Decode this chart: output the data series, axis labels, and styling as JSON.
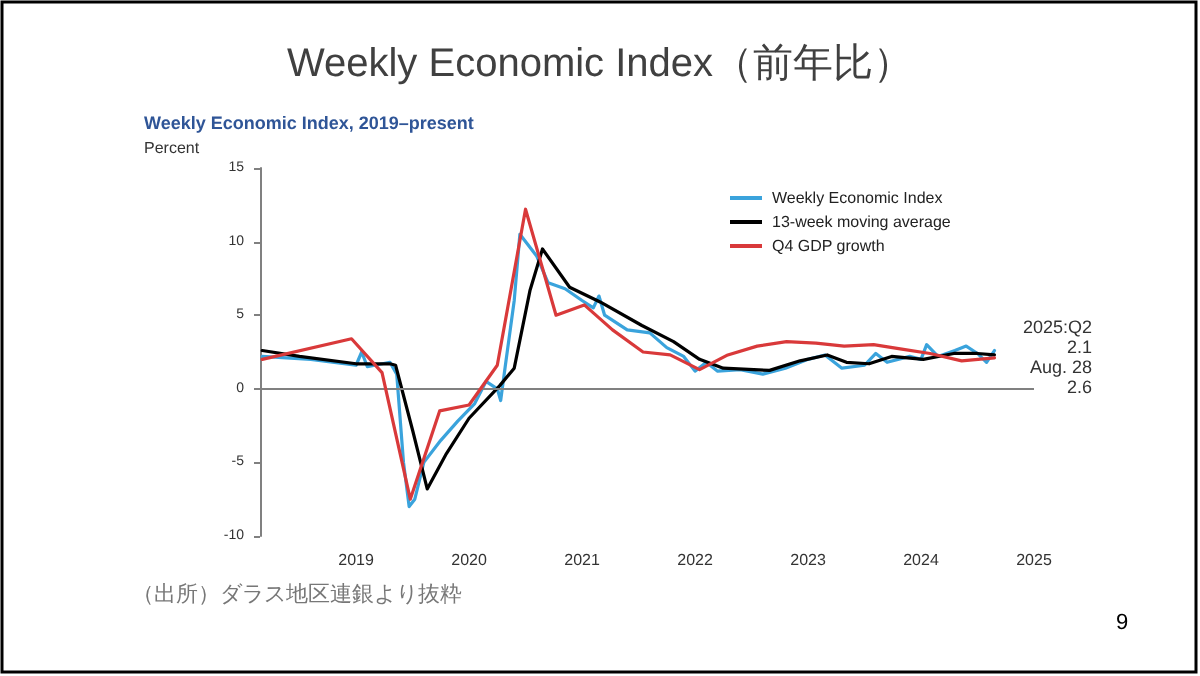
{
  "chart_data": {
    "type": "line",
    "title": "Weekly Economic Index（前年比）",
    "subtitle": "Weekly Economic Index, 2019–present",
    "ylabel": "Percent",
    "xlim": [
      2018.15,
      2025
    ],
    "xticks": [
      2019,
      2020,
      2021,
      2022,
      2023,
      2024,
      2025
    ],
    "ylim": [
      -10,
      15
    ],
    "yticks": [
      -10,
      -5,
      0,
      5,
      10,
      15
    ],
    "grid": false,
    "legend": "top right",
    "marker": "none",
    "line_style": "solid",
    "ref_lines": [
      {
        "axis": "y",
        "value": 0,
        "label": null,
        "color": "#808080"
      }
    ],
    "series": [
      {
        "name": "Weekly Economic Index",
        "color": "#3aa3dc",
        "x": [
          2018.17,
          2018.6,
          2019.0,
          2019.05,
          2019.1,
          2019.3,
          2019.36,
          2019.42,
          2019.47,
          2019.52,
          2019.6,
          2019.75,
          2019.9,
          2020.05,
          2020.15,
          2020.25,
          2020.28,
          2020.32,
          2020.4,
          2020.45,
          2020.52,
          2020.6,
          2020.7,
          2020.85,
          2021.0,
          2021.1,
          2021.15,
          2021.2,
          2021.4,
          2021.6,
          2021.75,
          2021.9,
          2022.0,
          2022.1,
          2022.2,
          2022.4,
          2022.6,
          2022.8,
          2023.0,
          2023.15,
          2023.3,
          2023.5,
          2023.6,
          2023.7,
          2023.9,
          2024.0,
          2024.05,
          2024.15,
          2024.3,
          2024.4,
          2024.5,
          2024.58,
          2024.65
        ],
        "values": [
          2.2,
          2.0,
          1.6,
          2.5,
          1.5,
          1.8,
          1.0,
          -5,
          -8.0,
          -7.5,
          -5,
          -3.5,
          -2.2,
          -1,
          0.5,
          0.0,
          -0.8,
          1.5,
          6,
          10.5,
          9.8,
          9,
          7.2,
          6.8,
          6.0,
          5.5,
          6.3,
          5.0,
          4.0,
          3.8,
          2.8,
          2.2,
          1.2,
          1.8,
          1.2,
          1.3,
          1.0,
          1.4,
          2.0,
          2.3,
          1.4,
          1.6,
          2.4,
          1.8,
          2.2,
          2.0,
          3.0,
          2.2,
          2.6,
          2.9,
          2.4,
          1.8,
          2.6
        ]
      },
      {
        "name": "13-week moving average",
        "color": "#000000",
        "x": [
          2018.17,
          2018.5,
          2019.0,
          2019.3,
          2019.35,
          2019.5,
          2019.63,
          2019.8,
          2020.0,
          2020.27,
          2020.4,
          2020.54,
          2020.65,
          2020.89,
          2021.16,
          2021.53,
          2021.81,
          2022.04,
          2022.25,
          2022.66,
          2022.93,
          2023.17,
          2023.34,
          2023.54,
          2023.74,
          2024.02,
          2024.29,
          2024.5,
          2024.65
        ],
        "values": [
          2.6,
          2.2,
          1.7,
          1.7,
          1.6,
          -2.8,
          -6.8,
          -4.4,
          -2.0,
          0.2,
          1.4,
          6.7,
          9.5,
          6.9,
          5.9,
          4.3,
          3.2,
          2.0,
          1.4,
          1.25,
          1.9,
          2.3,
          1.8,
          1.7,
          2.2,
          2.0,
          2.4,
          2.4,
          2.3
        ]
      },
      {
        "name": "Q4 GDP growth",
        "color": "#d9393a",
        "x": [
          2018.17,
          2018.96,
          2019.23,
          2019.48,
          2019.74,
          2020.0,
          2020.25,
          2020.5,
          2020.77,
          2021.02,
          2021.27,
          2021.54,
          2021.78,
          2022.04,
          2022.29,
          2022.55,
          2022.81,
          2023.07,
          2023.32,
          2023.58,
          2023.83,
          2024.08,
          2024.36,
          2024.65
        ],
        "values": [
          2.0,
          3.4,
          1.1,
          -7.5,
          -1.5,
          -1.1,
          1.6,
          12.2,
          5.0,
          5.7,
          4.0,
          2.5,
          2.3,
          1.3,
          2.3,
          2.9,
          3.2,
          3.1,
          2.9,
          3.0,
          2.7,
          2.4,
          1.9,
          2.1
        ]
      }
    ],
    "annotations": [
      "2025:Q2",
      "2.1",
      "Aug. 28",
      "2.6",
      "（出所）ダラス地区連銀より抜粋",
      "9"
    ]
  }
}
